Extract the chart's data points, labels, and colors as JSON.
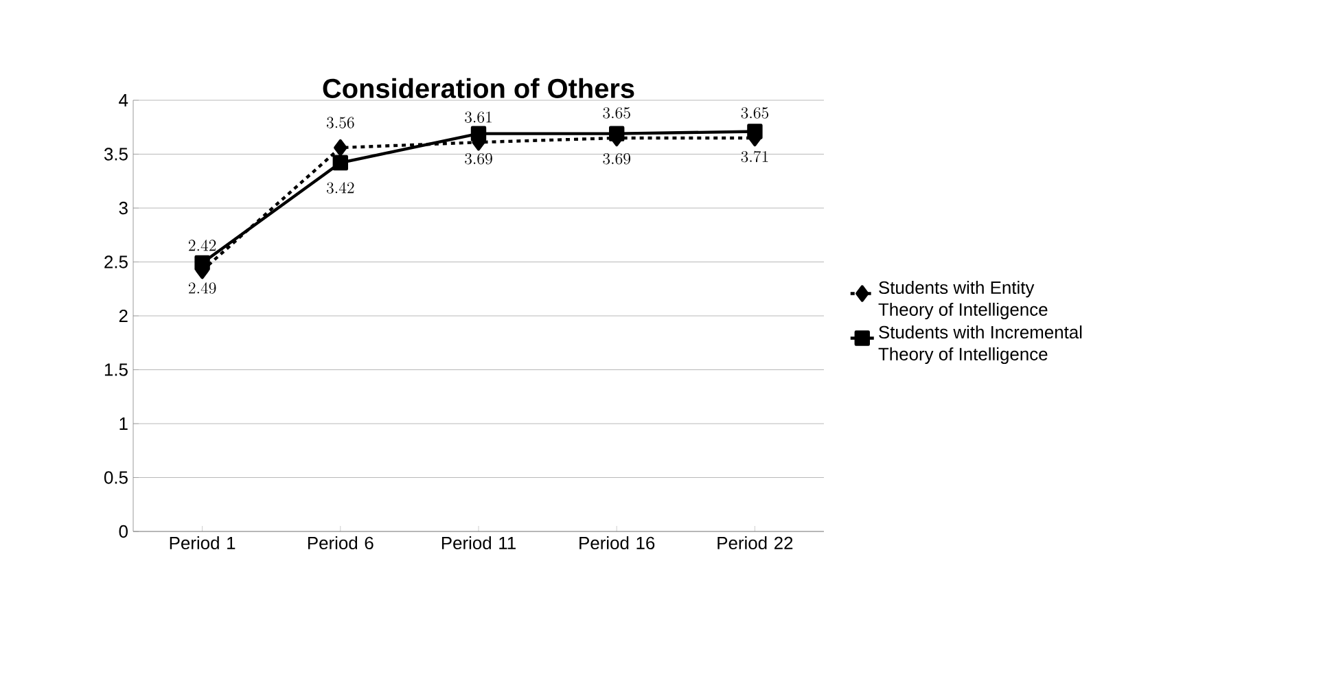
{
  "chart_data": {
    "type": "line",
    "title": "Consideration of Others",
    "categories": [
      "Period 1",
      "Period 6",
      "Period 11",
      "Period 16",
      "Period 22"
    ],
    "series": [
      {
        "name": "Students with Entity Theory of Intelligence",
        "color": "#000000",
        "values": [
          2.42,
          3.56,
          3.61,
          3.65,
          3.65
        ],
        "marker": "diamond",
        "line_style": "dashed"
      },
      {
        "name": "Students with Incremental Theory of Intelligence",
        "color": "#000000",
        "values": [
          2.49,
          3.42,
          3.69,
          3.69,
          3.71
        ],
        "marker": "square",
        "line_style": "solid"
      }
    ],
    "ylim": [
      0,
      4
    ],
    "yticks": [
      0,
      0.5,
      1,
      1.5,
      2,
      2.5,
      3,
      3.5,
      4
    ],
    "grid": "y",
    "legend": "right",
    "data_labels": true
  }
}
